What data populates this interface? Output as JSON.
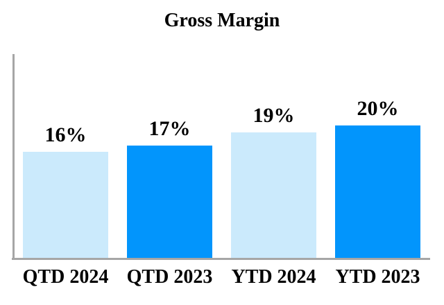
{
  "title": "Gross Margin",
  "chart_data": {
    "type": "bar",
    "title": "Gross Margin",
    "categories": [
      "QTD 2024",
      "QTD 2023",
      "YTD 2024",
      "YTD 2023"
    ],
    "values": [
      16,
      17,
      19,
      20
    ],
    "value_labels": [
      "16%",
      "17%",
      "19%",
      "20%"
    ],
    "bar_colors": [
      "#cbeafc",
      "#0295fc",
      "#cbeafc",
      "#0295fc"
    ],
    "xlabel": "",
    "ylabel": "",
    "ylim": [
      0,
      31
    ],
    "grid": false,
    "legend": "none",
    "background": "#ffffff"
  },
  "colors": {
    "light_blue": "#cbeafc",
    "bright_blue": "#0295fc",
    "axis_gray": "#a6a6a6",
    "text": "#000000"
  }
}
